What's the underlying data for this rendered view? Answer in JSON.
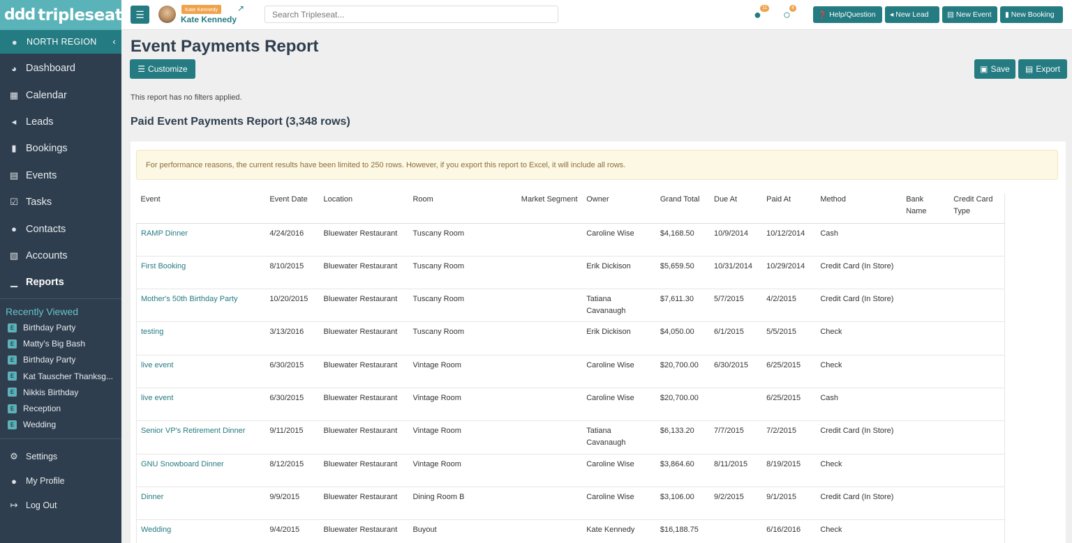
{
  "app": {
    "logo_mark": "ddd",
    "logo_text": "tripleseat"
  },
  "sidebar": {
    "region": "NORTH REGION",
    "items": [
      {
        "label": "Dashboard",
        "icon": "dashboard-icon"
      },
      {
        "label": "Calendar",
        "icon": "calendar-icon"
      },
      {
        "label": "Leads",
        "icon": "megaphone-icon"
      },
      {
        "label": "Bookings",
        "icon": "bookmark-icon"
      },
      {
        "label": "Events",
        "icon": "events-icon"
      },
      {
        "label": "Tasks",
        "icon": "checkbox-icon"
      },
      {
        "label": "Contacts",
        "icon": "users-icon"
      },
      {
        "label": "Accounts",
        "icon": "building-icon"
      },
      {
        "label": "Reports",
        "icon": "chart-icon"
      }
    ],
    "recent_title": "Recently Viewed",
    "recent_badge": "E",
    "recent": [
      "Birthday Party",
      "Matty's Big Bash",
      "Birthday Party",
      "Kat Tauscher Thanksg...",
      "Nikkis Birthday",
      "Reception",
      "Wedding"
    ],
    "bottom": [
      {
        "label": "Settings",
        "icon": "gear-icon"
      },
      {
        "label": "My Profile",
        "icon": "user-icon"
      },
      {
        "label": "Log Out",
        "icon": "logout-icon"
      }
    ]
  },
  "topbar": {
    "user_tag": "Kate Kennedy",
    "user_name": "Kate Kennedy",
    "search_placeholder": "Search Tripleseat...",
    "globe_count": "11",
    "chat_count": "4",
    "buttons": {
      "help": "Help/Question",
      "new_lead": "New Lead",
      "new_event": "New Event",
      "new_booking": "New Booking"
    }
  },
  "main": {
    "title": "Event Payments Report",
    "customize": "Customize",
    "save": "Save",
    "export": "Export",
    "filter_note": "This report has no filters applied.",
    "report_title": "Paid Event Payments Report (3,348 rows)",
    "alert": "For performance reasons, the current results have been limited to 250 rows. However, if you export this report to Excel, it will include all rows."
  },
  "table": {
    "headers": [
      "Event",
      "Event Date",
      "Location",
      "Room",
      "Market Segment",
      "Owner",
      "Grand Total",
      "Due At",
      "Paid At",
      "Method",
      "Bank Name",
      "Credit Card Type"
    ],
    "rows": [
      [
        "RAMP Dinner",
        "4/24/2016",
        "Bluewater Restaurant",
        "Tuscany Room",
        "",
        "Caroline Wise",
        "$4,168.50",
        "10/9/2014",
        "10/12/2014",
        "Cash",
        "",
        ""
      ],
      [
        "First Booking",
        "8/10/2015",
        "Bluewater Restaurant",
        "Tuscany Room",
        "",
        "Erik Dickison",
        "$5,659.50",
        "10/31/2014",
        "10/29/2014",
        "Credit Card (In Store)",
        "",
        ""
      ],
      [
        "Mother's 50th Birthday Party",
        "10/20/2015",
        "Bluewater Restaurant",
        "Tuscany Room",
        "",
        "Tatiana Cavanaugh",
        "$7,611.30",
        "5/7/2015",
        "4/2/2015",
        "Credit Card (In Store)",
        "",
        ""
      ],
      [
        "testing",
        "3/13/2016",
        "Bluewater Restaurant",
        "Tuscany Room",
        "",
        "Erik Dickison",
        "$4,050.00",
        "6/1/2015",
        "5/5/2015",
        "Check",
        "",
        ""
      ],
      [
        "live event",
        "6/30/2015",
        "Bluewater Restaurant",
        "Vintage Room",
        "",
        "Caroline Wise",
        "$20,700.00",
        "6/30/2015",
        "6/25/2015",
        "Check",
        "",
        ""
      ],
      [
        "live event",
        "6/30/2015",
        "Bluewater Restaurant",
        "Vintage Room",
        "",
        "Caroline Wise",
        "$20,700.00",
        "",
        "6/25/2015",
        "Cash",
        "",
        ""
      ],
      [
        "Senior VP's Retirement Dinner",
        "9/11/2015",
        "Bluewater Restaurant",
        "Vintage Room",
        "",
        "Tatiana Cavanaugh",
        "$6,133.20",
        "7/7/2015",
        "7/2/2015",
        "Credit Card (In Store)",
        "",
        ""
      ],
      [
        "GNU Snowboard Dinner",
        "8/12/2015",
        "Bluewater Restaurant",
        "Vintage Room",
        "",
        "Caroline Wise",
        "$3,864.60",
        "8/11/2015",
        "8/19/2015",
        "Check",
        "",
        ""
      ],
      [
        "Dinner",
        "9/9/2015",
        "Bluewater Restaurant",
        "Dining Room B",
        "",
        "Caroline Wise",
        "$3,106.00",
        "9/2/2015",
        "9/1/2015",
        "Credit Card (In Store)",
        "",
        ""
      ],
      [
        "Wedding",
        "9/4/2015",
        "Bluewater Restaurant",
        "Buyout",
        "",
        "Kate Kennedy",
        "$16,188.75",
        "",
        "6/16/2016",
        "Check",
        "",
        ""
      ]
    ]
  },
  "colors": {
    "teal": "#247b81",
    "sidebar": "#2f3e4e",
    "accent": "#5ab3b8",
    "badge": "#f0a24a"
  }
}
